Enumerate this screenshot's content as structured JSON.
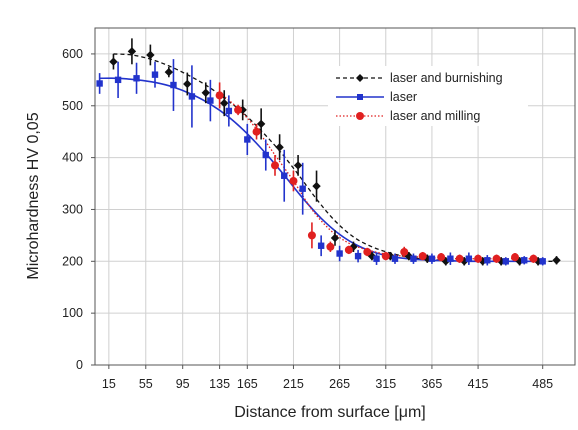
{
  "chart_data": {
    "type": "scatter",
    "title": "",
    "xlabel": "Distance from surface [μm]",
    "ylabel": "Microhardness HV 0,05",
    "xlim": [
      0,
      520
    ],
    "ylim": [
      0,
      650
    ],
    "x_ticks": [
      15,
      55,
      95,
      135,
      165,
      215,
      265,
      315,
      365,
      415,
      485
    ],
    "x_tick_labels": [
      "15",
      "55",
      "95",
      "135",
      "165",
      "215",
      "265",
      "315",
      "365",
      "415",
      "485"
    ],
    "y_ticks": [
      0,
      100,
      200,
      300,
      400,
      500,
      600
    ],
    "y_tick_labels": [
      "0",
      "100",
      "200",
      "300",
      "400",
      "500",
      "600"
    ],
    "grid": true,
    "legend_position": "top-right",
    "series": [
      {
        "name": "laser and burnishing",
        "color": "#111111",
        "marker": "diamond",
        "line": "dashed",
        "x": [
          20,
          40,
          60,
          80,
          100,
          120,
          140,
          160,
          180,
          200,
          220,
          240,
          260,
          280,
          300,
          320,
          340,
          360,
          380,
          400,
          420,
          440,
          460,
          480,
          500
        ],
        "y": [
          585,
          605,
          598,
          565,
          542,
          525,
          505,
          492,
          465,
          420,
          385,
          345,
          245,
          228,
          210,
          210,
          210,
          205,
          200,
          200,
          200,
          200,
          200,
          200,
          202
        ],
        "err": [
          15,
          25,
          20,
          10,
          22,
          20,
          25,
          20,
          30,
          25,
          20,
          30,
          15,
          10,
          8,
          8,
          8,
          8,
          8,
          8,
          8,
          8,
          8,
          8,
          8
        ],
        "fit": [
          600,
          598,
          590,
          577,
          560,
          540,
          515,
          487,
          452,
          413,
          368,
          320,
          278,
          247,
          228,
          216,
          208,
          204,
          202,
          201,
          200,
          200,
          200,
          200,
          200
        ]
      },
      {
        "name": "laser",
        "color": "#2233cc",
        "marker": "square",
        "line": "solid",
        "x": [
          5,
          25,
          45,
          65,
          85,
          105,
          125,
          145,
          165,
          185,
          205,
          225,
          245,
          265,
          285,
          305,
          325,
          345,
          365,
          385,
          405,
          425,
          445,
          465,
          485
        ],
        "y": [
          543,
          550,
          553,
          560,
          540,
          518,
          510,
          490,
          435,
          405,
          365,
          340,
          230,
          215,
          210,
          205,
          205,
          205,
          205,
          205,
          205,
          202,
          200,
          202,
          200
        ],
        "err": [
          20,
          35,
          30,
          25,
          50,
          60,
          40,
          30,
          30,
          30,
          50,
          50,
          20,
          15,
          12,
          12,
          10,
          10,
          10,
          12,
          12,
          10,
          8,
          8,
          8
        ],
        "fit": [
          553,
          553,
          550,
          545,
          536,
          522,
          503,
          478,
          446,
          408,
          366,
          322,
          283,
          252,
          230,
          216,
          208,
          204,
          202,
          201,
          200,
          200,
          200,
          200,
          200
        ]
      },
      {
        "name": "laser and milling",
        "color": "#e02020",
        "marker": "circle",
        "line": "dotted",
        "x": [
          135,
          155,
          175,
          195,
          215,
          235,
          255,
          275,
          295,
          315,
          335,
          355,
          375,
          395,
          415,
          435,
          455,
          475
        ],
        "y": [
          520,
          492,
          450,
          385,
          355,
          250,
          228,
          222,
          218,
          210,
          218,
          210,
          208,
          205,
          205,
          205,
          208,
          205
        ],
        "err": [
          25,
          10,
          15,
          20,
          20,
          25,
          10,
          8,
          8,
          8,
          10,
          8,
          8,
          8,
          8,
          8,
          8,
          8
        ],
        "fit": [
          525,
          495,
          455,
          405,
          355,
          300,
          260,
          235,
          222,
          214,
          210,
          208,
          206,
          205,
          205,
          205,
          205,
          205
        ]
      }
    ],
    "colors": {
      "burnishing": "#111111",
      "laser": "#2233cc",
      "milling": "#e02020",
      "grid": "#d0d0d0"
    }
  }
}
